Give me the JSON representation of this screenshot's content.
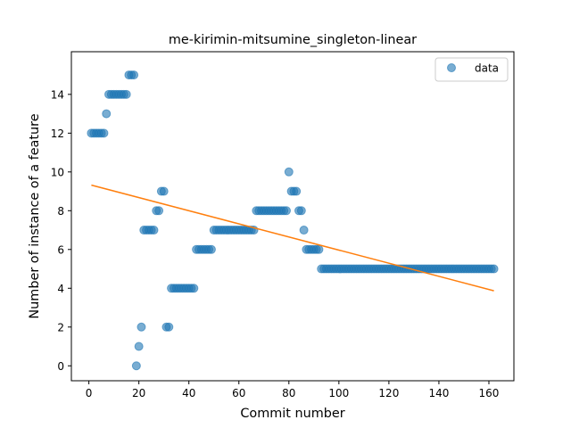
{
  "chart_data": {
    "type": "scatter",
    "title": "me-kirimin-mitsumine_singleton-linear",
    "xlabel": "Commit number",
    "ylabel": "Number of instance of a feature",
    "xlim": [
      -7,
      170
    ],
    "ylim": [
      -0.77,
      16.2
    ],
    "xticks": [
      0,
      20,
      40,
      60,
      80,
      100,
      120,
      140,
      160
    ],
    "yticks": [
      0,
      2,
      4,
      6,
      8,
      10,
      12,
      14
    ],
    "grid": false,
    "legend": {
      "placement": "top-right",
      "entries": [
        "data"
      ]
    },
    "colors": {
      "data": "#1f77b4",
      "fit": "#ff7f0e"
    },
    "series": [
      {
        "name": "data",
        "kind": "scatter",
        "x": [
          1,
          2,
          3,
          4,
          5,
          6,
          7,
          8,
          9,
          10,
          11,
          12,
          13,
          14,
          15,
          16,
          17,
          18,
          19,
          20,
          21,
          22,
          23,
          24,
          25,
          26,
          27,
          28,
          29,
          30,
          31,
          32,
          33,
          34,
          35,
          36,
          37,
          38,
          39,
          40,
          41,
          42,
          43,
          44,
          45,
          46,
          47,
          48,
          49,
          50,
          51,
          52,
          53,
          54,
          55,
          56,
          57,
          58,
          59,
          60,
          61,
          62,
          63,
          64,
          65,
          66,
          67,
          68,
          69,
          70,
          71,
          72,
          73,
          74,
          75,
          76,
          77,
          78,
          79,
          80,
          81,
          82,
          83,
          84,
          85,
          86,
          87,
          88,
          89,
          90,
          91,
          92,
          93,
          94,
          95,
          96,
          97,
          98,
          99,
          100,
          101,
          102,
          103,
          104,
          105,
          106,
          107,
          108,
          109,
          110,
          111,
          112,
          113,
          114,
          115,
          116,
          117,
          118,
          119,
          120,
          121,
          122,
          123,
          124,
          125,
          126,
          127,
          128,
          129,
          130,
          131,
          132,
          133,
          134,
          135,
          136,
          137,
          138,
          139,
          140,
          141,
          142,
          143,
          144,
          145,
          146,
          147,
          148,
          149,
          150,
          151,
          152,
          153,
          154,
          155,
          156,
          157,
          158,
          159,
          160,
          161,
          162
        ],
        "y": [
          12,
          12,
          12,
          12,
          12,
          12,
          13,
          14,
          14,
          14,
          14,
          14,
          14,
          14,
          14,
          15,
          15,
          15,
          0,
          1,
          2,
          7,
          7,
          7,
          7,
          7,
          8,
          8,
          9,
          9,
          2,
          2,
          4,
          4,
          4,
          4,
          4,
          4,
          4,
          4,
          4,
          4,
          6,
          6,
          6,
          6,
          6,
          6,
          6,
          7,
          7,
          7,
          7,
          7,
          7,
          7,
          7,
          7,
          7,
          7,
          7,
          7,
          7,
          7,
          7,
          7,
          8,
          8,
          8,
          8,
          8,
          8,
          8,
          8,
          8,
          8,
          8,
          8,
          8,
          10,
          9,
          9,
          9,
          8,
          8,
          7,
          6,
          6,
          6,
          6,
          6,
          6,
          5,
          5,
          5,
          5,
          5,
          5,
          5,
          5,
          5,
          5,
          5,
          5,
          5,
          5,
          5,
          5,
          5,
          5,
          5,
          5,
          5,
          5,
          5,
          5,
          5,
          5,
          5,
          5,
          5,
          5,
          5,
          5,
          5,
          5,
          5,
          5,
          5,
          5,
          5,
          5,
          5,
          5,
          5,
          5,
          5,
          5,
          5,
          5,
          5,
          5,
          5,
          5,
          5,
          5,
          5,
          5,
          5,
          5,
          5,
          5,
          5,
          5,
          5,
          5,
          5,
          5,
          5,
          5,
          5,
          5
        ]
      },
      {
        "name": "",
        "kind": "line",
        "x": [
          1,
          162
        ],
        "y": [
          9.32,
          3.87
        ]
      }
    ]
  }
}
